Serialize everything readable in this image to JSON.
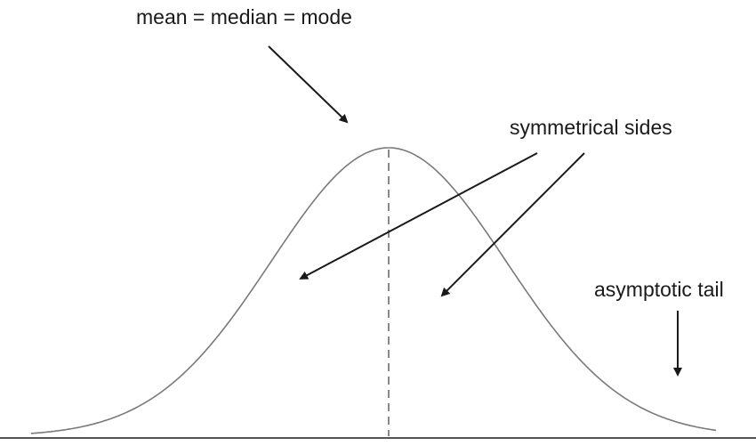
{
  "annotations": {
    "central_tendency": "mean = median = mode",
    "symmetry": "symmetrical sides",
    "tail": "asymptotic tail"
  },
  "colors": {
    "curve": "#7a7a7a",
    "arrow": "#1a1a1a",
    "dashed_line": "#8a8a8a",
    "baseline": "#555555",
    "text": "#1a1a1a"
  }
}
